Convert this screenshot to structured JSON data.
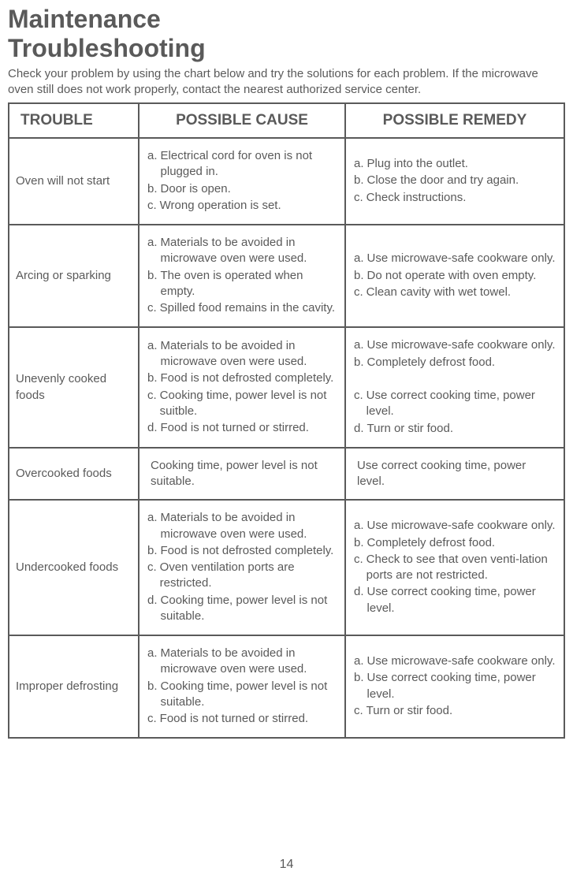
{
  "heading_line1": "Maintenance",
  "heading_line2": "Troubleshooting",
  "intro": "Check your problem by using the chart below and try the solutions for each problem. If the microwave oven still does not work properly, contact the nearest authorized service center.",
  "headers": {
    "trouble": "TROUBLE",
    "cause": "POSSIBLE CAUSE",
    "remedy": "POSSIBLE REMEDY"
  },
  "rows": [
    {
      "trouble": "Oven will not start",
      "causes": [
        {
          "l": "a.",
          "t": "Electrical cord for oven is not plugged in."
        },
        {
          "l": "b.",
          "t": "Door is open."
        },
        {
          "l": "c.",
          "t": "Wrong operation is set."
        }
      ],
      "remedies": [
        {
          "l": "a.",
          "t": "Plug into the outlet."
        },
        {
          "l": "b.",
          "t": "Close the door and try again."
        },
        {
          "l": "c.",
          "t": "Check instructions."
        }
      ]
    },
    {
      "trouble": "Arcing or sparking",
      "causes": [
        {
          "l": "a.",
          "t": "Materials to be avoided in microwave oven were used."
        },
        {
          "l": "b.",
          "t": "The oven is operated when empty."
        },
        {
          "l": "c.",
          "t": "Spilled food remains in the cavity."
        }
      ],
      "remedies": [
        {
          "l": "a.",
          "t": "Use microwave-safe cookware only."
        },
        {
          "l": "b.",
          "t": "Do not operate with oven empty."
        },
        {
          "l": "c.",
          "t": "Clean cavity with wet towel."
        }
      ]
    },
    {
      "trouble": "Unevenly cooked foods",
      "causes": [
        {
          "l": "a.",
          "t": "Materials to be avoided in microwave oven were used."
        },
        {
          "l": "b.",
          "t": "Food is not defrosted completely."
        },
        {
          "l": "c.",
          "t": "Cooking time, power level is not suitble."
        },
        {
          "l": "d.",
          "t": "Food is not turned or stirred."
        }
      ],
      "remedies": [
        {
          "l": "a.",
          "t": "Use microwave-safe cookware only."
        },
        {
          "l": "b.",
          "t": "Completely defrost food."
        },
        {
          "l": "",
          "t": " "
        },
        {
          "l": "c.",
          "t": "Use correct cooking time, power level."
        },
        {
          "l": "d.",
          "t": "Turn or stir food."
        }
      ]
    },
    {
      "trouble": "Overcooked foods",
      "cause_single": "Cooking time, power level is not suitable.",
      "remedy_single": "Use correct cooking time, power level."
    },
    {
      "trouble": "Undercooked foods",
      "causes": [
        {
          "l": "a.",
          "t": "Materials to be avoided in microwave oven were used."
        },
        {
          "l": "b.",
          "t": "Food is not defrosted completely."
        },
        {
          "l": "c.",
          "t": "Oven ventilation ports are restricted."
        },
        {
          "l": "d.",
          "t": "Cooking time, power level is not suitable."
        }
      ],
      "remedies": [
        {
          "l": "a.",
          "t": "Use microwave-safe cookware only."
        },
        {
          "l": "b.",
          "t": "Completely defrost food."
        },
        {
          "l": "c.",
          "t": "Check to see that oven venti-lation ports are not restricted."
        },
        {
          "l": "d.",
          "t": "Use correct cooking time, power level."
        }
      ]
    },
    {
      "trouble": "Improper defrosting",
      "causes": [
        {
          "l": "a.",
          "t": "Materials to be avoided in microwave oven were used."
        },
        {
          "l": "b.",
          "t": "Cooking time, power level is not suitable."
        },
        {
          "l": "c.",
          "t": "Food is not turned or stirred."
        }
      ],
      "remedies": [
        {
          "l": "a.",
          "t": "Use microwave-safe cookware only."
        },
        {
          "l": "b.",
          "t": "Use correct cooking time, power level."
        },
        {
          "l": "c.",
          "t": "Turn or stir food."
        }
      ]
    }
  ],
  "page_number": "14"
}
